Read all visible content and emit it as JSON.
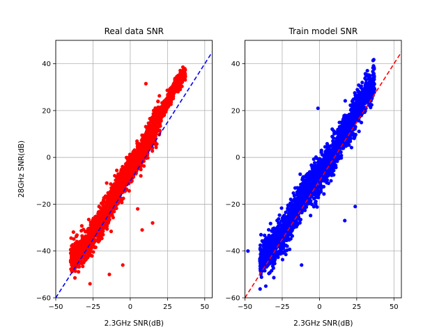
{
  "chart_data": [
    {
      "type": "scatter",
      "title": "Real data SNR",
      "xlabel": "2.3GHz SNR(dB)",
      "ylabel": "28GHz SNR(dB)",
      "xlim": [
        -50,
        55
      ],
      "ylim": [
        -60,
        50
      ],
      "xticks": [
        -50,
        -25,
        0,
        25,
        50
      ],
      "yticks": [
        -60,
        -40,
        -20,
        0,
        20,
        40
      ],
      "xtick_labels": [
        "−50",
        "−25",
        "0",
        "25",
        "50"
      ],
      "ytick_labels": [
        "−60",
        "−40",
        "−20",
        "0",
        "20",
        "40"
      ],
      "grid": true,
      "point_color": "#ff0000",
      "reference_line": {
        "slope": 1,
        "intercept": -10,
        "color": "#0000ff",
        "style": "dashed"
      },
      "series_trend": {
        "description_points": [
          [
            -40,
            -44
          ],
          [
            -30,
            -38
          ],
          [
            -20,
            -28
          ],
          [
            -10,
            -15
          ],
          [
            0,
            -5
          ],
          [
            10,
            5
          ],
          [
            20,
            18
          ],
          [
            30,
            30
          ],
          [
            37,
            36
          ]
        ]
      },
      "outliers": [
        [
          10.5,
          31.5
        ],
        [
          -5,
          -46
        ],
        [
          -14,
          -50
        ],
        [
          -27,
          -54
        ],
        [
          15,
          -28
        ],
        [
          8,
          -31
        ],
        [
          5,
          -22
        ]
      ]
    },
    {
      "type": "scatter",
      "title": "Train model SNR",
      "xlabel": "2.3GHz SNR(dB)",
      "ylabel": "",
      "xlim": [
        -50,
        55
      ],
      "ylim": [
        -60,
        50
      ],
      "xticks": [
        -50,
        -25,
        0,
        25,
        50
      ],
      "yticks": [
        -60,
        -40,
        -20,
        0,
        20,
        40
      ],
      "xtick_labels": [
        "−50",
        "−25",
        "0",
        "25",
        "50"
      ],
      "ytick_labels": [
        "−60",
        "−40",
        "−20",
        "0",
        "20",
        "40"
      ],
      "grid": true,
      "point_color": "#0000ff",
      "reference_line": {
        "slope": 1,
        "intercept": -10,
        "color": "#ff0000",
        "style": "dashed"
      },
      "series_trend": {
        "description_points": [
          [
            -40,
            -44
          ],
          [
            -30,
            -38
          ],
          [
            -20,
            -28
          ],
          [
            -10,
            -15
          ],
          [
            0,
            -8
          ],
          [
            10,
            2
          ],
          [
            20,
            14
          ],
          [
            30,
            26
          ],
          [
            36,
            32
          ]
        ]
      },
      "outliers": [
        [
          -1,
          21
        ],
        [
          -48,
          -40
        ],
        [
          -36,
          -55
        ],
        [
          24,
          -21
        ],
        [
          17,
          -27
        ],
        [
          20,
          12
        ],
        [
          -12,
          -46
        ]
      ]
    }
  ]
}
